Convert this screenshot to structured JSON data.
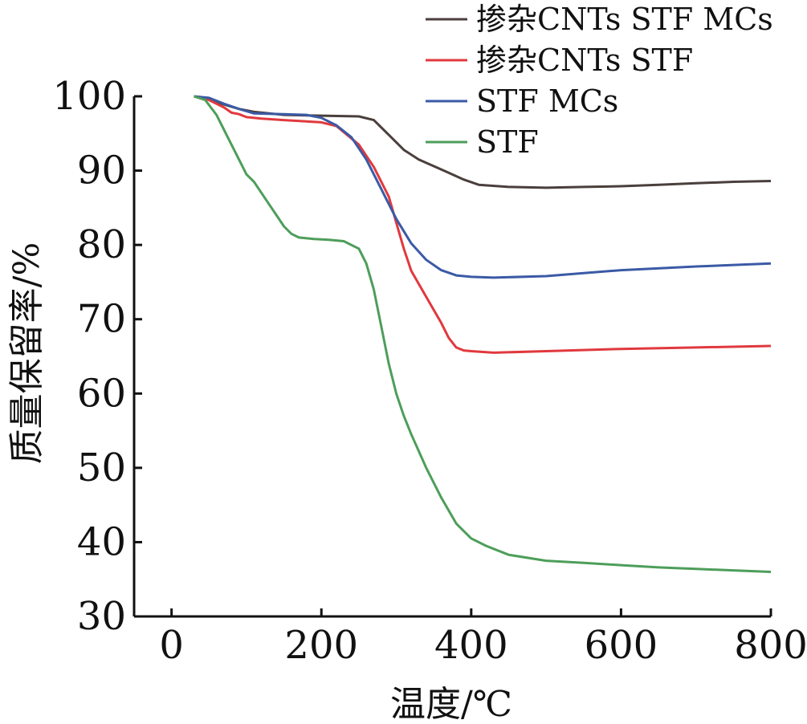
{
  "chart_data": {
    "type": "line",
    "title": "",
    "xlabel": "温度/℃",
    "ylabel": "质量保留率/%",
    "xlim": [
      -50,
      800
    ],
    "ylim": [
      30,
      100
    ],
    "xticks": [
      0,
      200,
      400,
      600,
      800
    ],
    "yticks": [
      30,
      40,
      50,
      60,
      70,
      80,
      90,
      100
    ],
    "grid": false,
    "legend_position": "top-right",
    "series": [
      {
        "name": "掺杂CNTs STF MCs",
        "color": "#4a3f3c",
        "x": [
          30,
          50,
          70,
          90,
          110,
          150,
          200,
          250,
          270,
          290,
          310,
          330,
          350,
          370,
          390,
          410,
          450,
          500,
          550,
          600,
          650,
          700,
          750,
          800
        ],
        "y": [
          100,
          99.6,
          98.9,
          98.3,
          97.9,
          97.5,
          97.4,
          97.3,
          96.8,
          94.8,
          92.8,
          91.5,
          90.6,
          89.7,
          88.8,
          88.1,
          87.8,
          87.7,
          87.8,
          87.9,
          88.1,
          88.3,
          88.5,
          88.6
        ]
      },
      {
        "name": "掺杂CNTs STF",
        "color": "#e0393e",
        "x": [
          30,
          50,
          70,
          80,
          90,
          100,
          120,
          150,
          200,
          220,
          250,
          270,
          290,
          300,
          310,
          320,
          340,
          360,
          370,
          380,
          390,
          400,
          430,
          500,
          600,
          700,
          800
        ],
        "y": [
          100,
          99.5,
          98.5,
          97.8,
          97.6,
          97.2,
          97,
          96.8,
          96.5,
          96,
          93.5,
          90.5,
          86.5,
          83,
          79.5,
          76.5,
          73,
          69.5,
          67.5,
          66.2,
          65.8,
          65.7,
          65.5,
          65.7,
          66,
          66.2,
          66.4
        ]
      },
      {
        "name": "STF MCs",
        "color": "#3b5aa5",
        "x": [
          30,
          50,
          70,
          90,
          110,
          150,
          180,
          200,
          220,
          240,
          260,
          280,
          300,
          320,
          340,
          360,
          380,
          400,
          430,
          500,
          600,
          700,
          800
        ],
        "y": [
          100,
          99.8,
          99,
          98.3,
          97.7,
          97.6,
          97.5,
          97.1,
          96.1,
          94.5,
          91.5,
          87.5,
          83.5,
          80.2,
          78,
          76.6,
          75.9,
          75.7,
          75.6,
          75.8,
          76.6,
          77.1,
          77.5
        ]
      },
      {
        "name": "STF",
        "color": "#4d9e5a",
        "x": [
          30,
          45,
          60,
          75,
          90,
          100,
          110,
          120,
          130,
          140,
          150,
          160,
          170,
          190,
          210,
          230,
          250,
          260,
          270,
          280,
          290,
          300,
          310,
          320,
          340,
          360,
          380,
          400,
          420,
          450,
          500,
          550,
          600,
          650,
          700,
          750,
          800
        ],
        "y": [
          100,
          99.5,
          97.5,
          94.5,
          91.5,
          89.5,
          88.5,
          87,
          85.5,
          84,
          82.5,
          81.5,
          81,
          80.8,
          80.7,
          80.5,
          79.5,
          77.5,
          74,
          69,
          64,
          60,
          57,
          54.5,
          50,
          46,
          42.5,
          40.5,
          39.5,
          38.3,
          37.5,
          37.2,
          36.9,
          36.6,
          36.4,
          36.2,
          36
        ]
      }
    ]
  }
}
